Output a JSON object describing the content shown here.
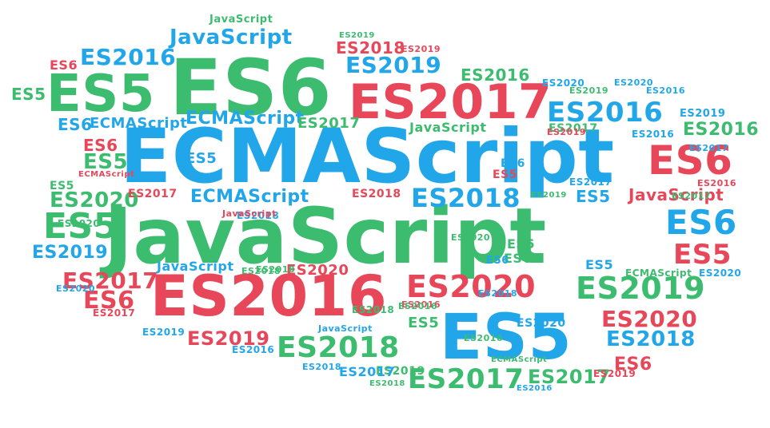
{
  "image": {
    "type": "word-cloud",
    "palette": {
      "green": "#3cbc6e",
      "blue": "#21a6ea",
      "red": "#e8475a"
    },
    "words": [
      {
        "text": "JavaScript",
        "color": "green"
      },
      {
        "text": "ECMAScript",
        "color": "blue"
      },
      {
        "text": "ES6",
        "color": "green"
      },
      {
        "text": "ES5",
        "color": "green"
      },
      {
        "text": "ES2017",
        "color": "red"
      },
      {
        "text": "ES2016",
        "color": "red"
      },
      {
        "text": "ES5",
        "color": "blue"
      },
      {
        "text": "ES6",
        "color": "red"
      },
      {
        "text": "JavaScript",
        "color": "blue"
      },
      {
        "text": "ES2016",
        "color": "blue"
      },
      {
        "text": "ES2019",
        "color": "blue"
      },
      {
        "text": "ES2018",
        "color": "blue"
      },
      {
        "text": "ES2020",
        "color": "red"
      },
      {
        "text": "ES2019",
        "color": "green"
      },
      {
        "text": "ES2018",
        "color": "green"
      },
      {
        "text": "ES2017",
        "color": "green"
      },
      {
        "text": "ES6",
        "color": "blue"
      },
      {
        "text": "ES5",
        "color": "green"
      },
      {
        "text": "ES5",
        "color": "red"
      },
      {
        "text": "ES2016",
        "color": "blue"
      },
      {
        "text": "ES2020",
        "color": "green"
      },
      {
        "text": "ES2019",
        "color": "blue"
      },
      {
        "text": "ES2018",
        "color": "blue"
      },
      {
        "text": "ES2020",
        "color": "red"
      },
      {
        "text": "ES2017",
        "color": "red"
      },
      {
        "text": "ECMAScript",
        "color": "blue"
      },
      {
        "text": "ECMAScript",
        "color": "blue"
      },
      {
        "text": "JavaScript",
        "color": "blue"
      },
      {
        "text": "ES2019",
        "color": "red"
      },
      {
        "text": "ES2017",
        "color": "green"
      },
      {
        "text": "ES2017",
        "color": "green"
      },
      {
        "text": "ES6",
        "color": "red"
      },
      {
        "text": "ES6",
        "color": "blue"
      },
      {
        "text": "ES5",
        "color": "green"
      },
      {
        "text": "ES5",
        "color": "green"
      },
      {
        "text": "ES2016",
        "color": "green"
      },
      {
        "text": "ES2016",
        "color": "green"
      },
      {
        "text": "ES2018",
        "color": "red"
      },
      {
        "text": "JavaScript",
        "color": "green"
      },
      {
        "text": "JavaScript",
        "color": "red"
      },
      {
        "text": "JavaScript",
        "color": "blue"
      },
      {
        "text": "ES2018",
        "color": "blue"
      },
      {
        "text": "ES2020",
        "color": "blue"
      },
      {
        "text": "ES2019",
        "color": "green"
      },
      {
        "text": "ES2018",
        "color": "red"
      },
      {
        "text": "ES2017",
        "color": "red"
      },
      {
        "text": "ES2020",
        "color": "red"
      },
      {
        "text": "ES2016",
        "color": "red"
      },
      {
        "text": "ES6",
        "color": "red"
      },
      {
        "text": "ES5",
        "color": "blue"
      },
      {
        "text": "ES5",
        "color": "red"
      },
      {
        "text": "ES6",
        "color": "blue"
      },
      {
        "text": "ES6",
        "color": "red"
      },
      {
        "text": "JavaScript",
        "color": "green"
      },
      {
        "text": "ES2019",
        "color": "green"
      },
      {
        "text": "ES2018",
        "color": "blue"
      },
      {
        "text": "ES2017",
        "color": "blue"
      },
      {
        "text": "ES2016",
        "color": "blue"
      },
      {
        "text": "ES2020",
        "color": "green"
      },
      {
        "text": "ES2019",
        "color": "red"
      },
      {
        "text": "ES5",
        "color": "green"
      },
      {
        "text": "ES6",
        "color": "green"
      },
      {
        "text": "ES5",
        "color": "blue"
      },
      {
        "text": "ES2017",
        "color": "green"
      },
      {
        "text": "ES2016",
        "color": "blue"
      },
      {
        "text": "ES2019",
        "color": "green"
      },
      {
        "text": "ES2018",
        "color": "green"
      },
      {
        "text": "ES2020",
        "color": "blue"
      },
      {
        "text": "ES2017",
        "color": "blue"
      },
      {
        "text": "ECMAScript",
        "color": "red"
      },
      {
        "text": "ECMAScript",
        "color": "green"
      },
      {
        "text": "ECMAScript",
        "color": "blue"
      },
      {
        "text": "ES2016",
        "color": "green"
      },
      {
        "text": "ES2018",
        "color": "green"
      },
      {
        "text": "ES2019",
        "color": "blue"
      },
      {
        "text": "ES2020",
        "color": "blue"
      },
      {
        "text": "ES2019",
        "color": "red"
      },
      {
        "text": "ES6",
        "color": "red"
      },
      {
        "text": "ES5",
        "color": "green"
      },
      {
        "text": "ES2016",
        "color": "red"
      },
      {
        "text": "ES2017",
        "color": "red"
      },
      {
        "text": "ES2018",
        "color": "blue"
      },
      {
        "text": "ES2019",
        "color": "blue"
      },
      {
        "text": "ES2020",
        "color": "blue"
      },
      {
        "text": "JavaScript",
        "color": "red"
      },
      {
        "text": "ES2016",
        "color": "blue"
      },
      {
        "text": "ES2017",
        "color": "blue"
      },
      {
        "text": "ES2018",
        "color": "green"
      },
      {
        "text": "ES2019",
        "color": "green"
      },
      {
        "text": "ES2020",
        "color": "green"
      },
      {
        "text": "ES5",
        "color": "blue"
      },
      {
        "text": "ES6",
        "color": "blue"
      },
      {
        "text": "ES5",
        "color": "green"
      },
      {
        "text": "ECMAScript",
        "color": "green"
      },
      {
        "text": "ES2016",
        "color": "green"
      },
      {
        "text": "ES2020",
        "color": "blue"
      },
      {
        "text": "ES2019",
        "color": "red"
      },
      {
        "text": "ES2017",
        "color": "green"
      },
      {
        "text": "ES2018",
        "color": "green"
      },
      {
        "text": "ES2016",
        "color": "blue"
      }
    ]
  }
}
